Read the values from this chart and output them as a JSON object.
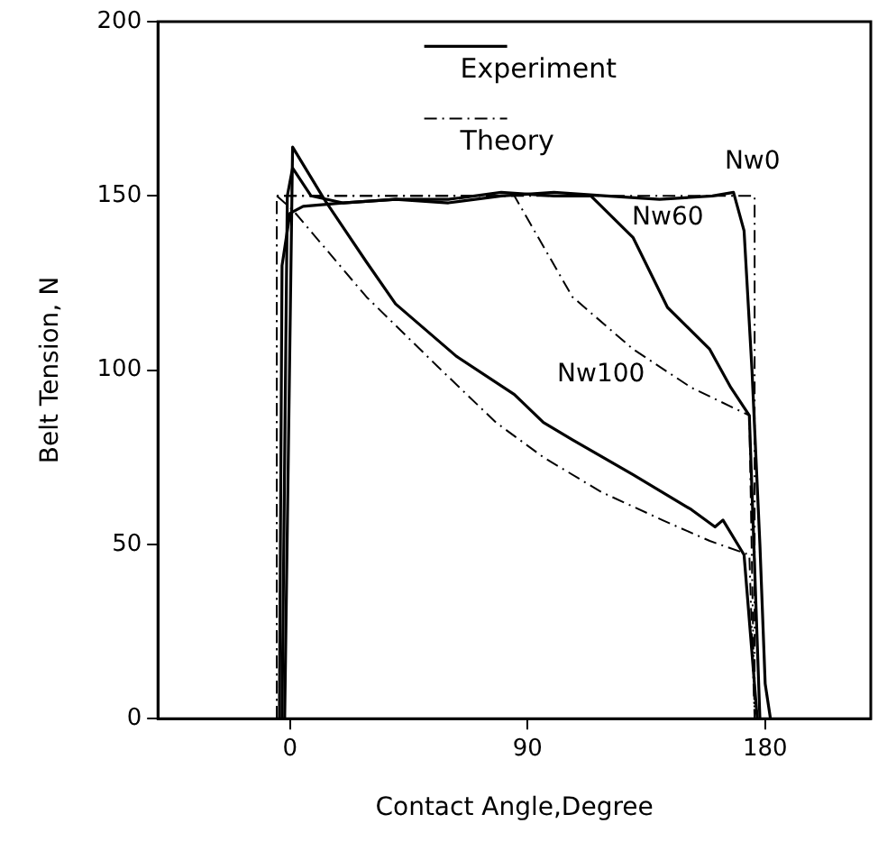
{
  "chart_data": {
    "type": "line",
    "xlabel": "Contact Angle,Degree",
    "ylabel": "Belt Tension, N",
    "xlim": [
      -50,
      220
    ],
    "xticks": [
      0,
      90,
      180
    ],
    "ylim": [
      0,
      200
    ],
    "yticks": [
      0,
      50,
      100,
      150,
      200
    ],
    "grid": false,
    "legend": "top",
    "marker": "none",
    "series": [
      {
        "name": "Experiment",
        "color": "#000000",
        "line_style": "solid",
        "x": [
          -4,
          -3,
          0,
          5,
          20,
          40,
          60,
          80,
          100,
          120,
          140,
          160,
          168,
          172,
          175,
          178,
          180,
          182
        ],
        "values": [
          0,
          130,
          145,
          147,
          148,
          149,
          148,
          150,
          151,
          150,
          149,
          150,
          151,
          140,
          100,
          50,
          10,
          0
        ]
      },
      {
        "name": "Theory",
        "color": "#000000",
        "line_style": "dashed",
        "x": [
          -5,
          -5,
          176,
          176
        ],
        "values": [
          0,
          150,
          150,
          0
        ]
      },
      {
        "color": "#000000",
        "line_style": "solid",
        "x": [
          -3,
          -1,
          1,
          8,
          20,
          40,
          60,
          80,
          100,
          114,
          130,
          143,
          159,
          167,
          174,
          178
        ],
        "values": [
          0,
          150,
          158,
          150,
          148,
          149,
          149,
          151,
          150,
          150,
          138,
          118,
          106,
          95,
          87,
          0
        ]
      },
      {
        "color": "#000000",
        "line_style": "dashed",
        "x": [
          -5,
          -5,
          85,
          107,
          130,
          152,
          174,
          176
        ],
        "values": [
          0,
          150,
          150,
          121,
          106,
          95,
          87,
          0
        ]
      },
      {
        "color": "#000000",
        "line_style": "solid",
        "x": [
          -2,
          1,
          13,
          29,
          40,
          63,
          85,
          96,
          107,
          130,
          152,
          161,
          164,
          172,
          177
        ],
        "values": [
          0,
          164,
          149,
          131,
          119,
          104,
          93,
          85,
          80,
          70,
          60,
          55,
          57,
          47,
          0
        ]
      },
      {
        "color": "#000000",
        "line_style": "dashed",
        "x": [
          -5,
          1,
          29,
          56,
          78,
          96,
          118,
          141,
          159,
          174,
          176
        ],
        "values": [
          150,
          146,
          121,
          101,
          85,
          75,
          65,
          57,
          51,
          47,
          0
        ]
      }
    ],
    "annotations": [
      "Nw0",
      "Nw60",
      "Nw100"
    ]
  }
}
